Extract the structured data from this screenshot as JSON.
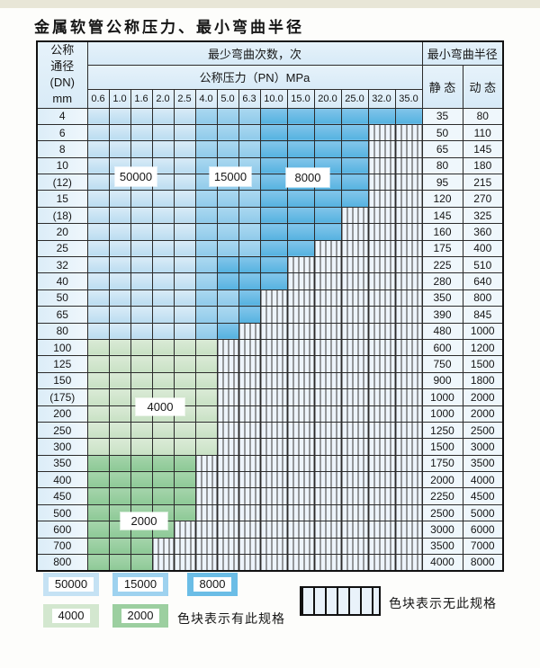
{
  "title": "金属软管公称压力、最小弯曲半径",
  "colors": {
    "c50000": "#c5e2f4",
    "c15000": "#9ed2ef",
    "c8000": "#6bbde6",
    "c4000": "#d3e7cf",
    "c2000": "#9ccfa0",
    "hatch_bg": "#edf4fb",
    "grid": "#2b2b2b",
    "header_bg": "#ddedf8"
  },
  "table": {
    "header": {
      "dn_lines": [
        "公称",
        "通径",
        "(DN)",
        "mm"
      ],
      "bend_times": "最少弯曲次数，次",
      "pressure": "公称压力（PN）MPa",
      "bend_radius": "最小弯曲半径",
      "static": "静 态",
      "dynamic": "动 态",
      "pressures": [
        "0.6",
        "1.0",
        "1.6",
        "2.0",
        "2.5",
        "4.0",
        "5.0",
        "6.3",
        "10.0",
        "15.0",
        "20.0",
        "25.0",
        "32.0",
        "35.0"
      ]
    },
    "overlays": [
      {
        "label": "50000"
      },
      {
        "label": "15000"
      },
      {
        "label": "8000"
      },
      {
        "label": "4000"
      },
      {
        "label": "2000"
      }
    ],
    "rows": [
      {
        "dn": "4",
        "static": "35",
        "dynamic": "80",
        "spec": [
          "50000",
          "50000",
          "50000",
          "50000",
          "50000",
          "15000",
          "15000",
          "15000",
          "8000",
          "8000",
          "8000",
          "8000",
          "8000",
          "8000"
        ]
      },
      {
        "dn": "6",
        "static": "50",
        "dynamic": "110",
        "spec": [
          "50000",
          "50000",
          "50000",
          "50000",
          "50000",
          "15000",
          "15000",
          "15000",
          "8000",
          "8000",
          "8000",
          "8000",
          null,
          null
        ]
      },
      {
        "dn": "8",
        "static": "65",
        "dynamic": "145",
        "spec": [
          "50000",
          "50000",
          "50000",
          "50000",
          "50000",
          "15000",
          "15000",
          "15000",
          "8000",
          "8000",
          "8000",
          "8000",
          null,
          null
        ]
      },
      {
        "dn": "10",
        "static": "80",
        "dynamic": "180",
        "spec": [
          "50000",
          "50000",
          "50000",
          "50000",
          "50000",
          "15000",
          "15000",
          "15000",
          "8000",
          "8000",
          "8000",
          "8000",
          null,
          null
        ]
      },
      {
        "dn": "(12)",
        "static": "95",
        "dynamic": "215",
        "spec": [
          "50000",
          "50000",
          "50000",
          "50000",
          "50000",
          "15000",
          "15000",
          "15000",
          "8000",
          "8000",
          "8000",
          "8000",
          null,
          null
        ]
      },
      {
        "dn": "15",
        "static": "120",
        "dynamic": "270",
        "spec": [
          "50000",
          "50000",
          "50000",
          "50000",
          "50000",
          "15000",
          "15000",
          "15000",
          "8000",
          "8000",
          "8000",
          "8000",
          null,
          null
        ]
      },
      {
        "dn": "(18)",
        "static": "145",
        "dynamic": "325",
        "spec": [
          "50000",
          "50000",
          "50000",
          "50000",
          "50000",
          "15000",
          "15000",
          "15000",
          "8000",
          "8000",
          "8000",
          null,
          null,
          null
        ]
      },
      {
        "dn": "20",
        "static": "160",
        "dynamic": "360",
        "spec": [
          "50000",
          "50000",
          "50000",
          "50000",
          "50000",
          "15000",
          "15000",
          "15000",
          "8000",
          "8000",
          "8000",
          null,
          null,
          null
        ]
      },
      {
        "dn": "25",
        "static": "175",
        "dynamic": "400",
        "spec": [
          "50000",
          "50000",
          "50000",
          "50000",
          "50000",
          "15000",
          "15000",
          "15000",
          "8000",
          "8000",
          null,
          null,
          null,
          null
        ]
      },
      {
        "dn": "32",
        "static": "225",
        "dynamic": "510",
        "spec": [
          "50000",
          "50000",
          "50000",
          "50000",
          "50000",
          "15000",
          "8000",
          "8000",
          "8000",
          null,
          null,
          null,
          null,
          null
        ]
      },
      {
        "dn": "40",
        "static": "280",
        "dynamic": "640",
        "spec": [
          "50000",
          "50000",
          "50000",
          "50000",
          "50000",
          "15000",
          "8000",
          "8000",
          "8000",
          null,
          null,
          null,
          null,
          null
        ]
      },
      {
        "dn": "50",
        "static": "350",
        "dynamic": "800",
        "spec": [
          "50000",
          "50000",
          "50000",
          "50000",
          "50000",
          "15000",
          "15000",
          "8000",
          null,
          null,
          null,
          null,
          null,
          null
        ]
      },
      {
        "dn": "65",
        "static": "390",
        "dynamic": "845",
        "spec": [
          "50000",
          "50000",
          "50000",
          "50000",
          "50000",
          "15000",
          "15000",
          "8000",
          null,
          null,
          null,
          null,
          null,
          null
        ]
      },
      {
        "dn": "80",
        "static": "480",
        "dynamic": "1000",
        "spec": [
          "50000",
          "50000",
          "50000",
          "50000",
          "50000",
          "15000",
          "8000",
          null,
          null,
          null,
          null,
          null,
          null,
          null
        ]
      },
      {
        "dn": "100",
        "static": "600",
        "dynamic": "1200",
        "spec": [
          "4000",
          "4000",
          "4000",
          "4000",
          "4000",
          "4000",
          null,
          null,
          null,
          null,
          null,
          null,
          null,
          null
        ]
      },
      {
        "dn": "125",
        "static": "750",
        "dynamic": "1500",
        "spec": [
          "4000",
          "4000",
          "4000",
          "4000",
          "4000",
          "4000",
          null,
          null,
          null,
          null,
          null,
          null,
          null,
          null
        ]
      },
      {
        "dn": "150",
        "static": "900",
        "dynamic": "1800",
        "spec": [
          "4000",
          "4000",
          "4000",
          "4000",
          "4000",
          "4000",
          null,
          null,
          null,
          null,
          null,
          null,
          null,
          null
        ]
      },
      {
        "dn": "(175)",
        "static": "1000",
        "dynamic": "2000",
        "spec": [
          "4000",
          "4000",
          "4000",
          "4000",
          "4000",
          "4000",
          null,
          null,
          null,
          null,
          null,
          null,
          null,
          null
        ]
      },
      {
        "dn": "200",
        "static": "1000",
        "dynamic": "2000",
        "spec": [
          "4000",
          "4000",
          "4000",
          "4000",
          "4000",
          "4000",
          null,
          null,
          null,
          null,
          null,
          null,
          null,
          null
        ]
      },
      {
        "dn": "250",
        "static": "1250",
        "dynamic": "2500",
        "spec": [
          "4000",
          "4000",
          "4000",
          "4000",
          "4000",
          "4000",
          null,
          null,
          null,
          null,
          null,
          null,
          null,
          null
        ]
      },
      {
        "dn": "300",
        "static": "1500",
        "dynamic": "3000",
        "spec": [
          "4000",
          "4000",
          "4000",
          "4000",
          "4000",
          "4000",
          null,
          null,
          null,
          null,
          null,
          null,
          null,
          null
        ]
      },
      {
        "dn": "350",
        "static": "1750",
        "dynamic": "3500",
        "spec": [
          "2000",
          "2000",
          "2000",
          "2000",
          "2000",
          null,
          null,
          null,
          null,
          null,
          null,
          null,
          null,
          null
        ]
      },
      {
        "dn": "400",
        "static": "2000",
        "dynamic": "4000",
        "spec": [
          "2000",
          "2000",
          "2000",
          "2000",
          "2000",
          null,
          null,
          null,
          null,
          null,
          null,
          null,
          null,
          null
        ]
      },
      {
        "dn": "450",
        "static": "2250",
        "dynamic": "4500",
        "spec": [
          "2000",
          "2000",
          "2000",
          "2000",
          "2000",
          null,
          null,
          null,
          null,
          null,
          null,
          null,
          null,
          null
        ]
      },
      {
        "dn": "500",
        "static": "2500",
        "dynamic": "5000",
        "spec": [
          "2000",
          "2000",
          "2000",
          "2000",
          "2000",
          null,
          null,
          null,
          null,
          null,
          null,
          null,
          null,
          null
        ]
      },
      {
        "dn": "600",
        "static": "3000",
        "dynamic": "6000",
        "spec": [
          "2000",
          "2000",
          "2000",
          "2000",
          null,
          null,
          null,
          null,
          null,
          null,
          null,
          null,
          null,
          null
        ]
      },
      {
        "dn": "700",
        "static": "3500",
        "dynamic": "7000",
        "spec": [
          "2000",
          "2000",
          "2000",
          null,
          null,
          null,
          null,
          null,
          null,
          null,
          null,
          null,
          null,
          null
        ]
      },
      {
        "dn": "800",
        "static": "4000",
        "dynamic": "8000",
        "spec": [
          "2000",
          "2000",
          "2000",
          null,
          null,
          null,
          null,
          null,
          null,
          null,
          null,
          null,
          null,
          null
        ]
      }
    ]
  },
  "legend": {
    "items": [
      {
        "label": "50000"
      },
      {
        "label": "15000"
      },
      {
        "label": "8000"
      },
      {
        "label": "4000"
      },
      {
        "label": "2000"
      }
    ],
    "has_spec_text": "色块表示有此规格",
    "no_spec_text": "色块表示无此规格"
  }
}
